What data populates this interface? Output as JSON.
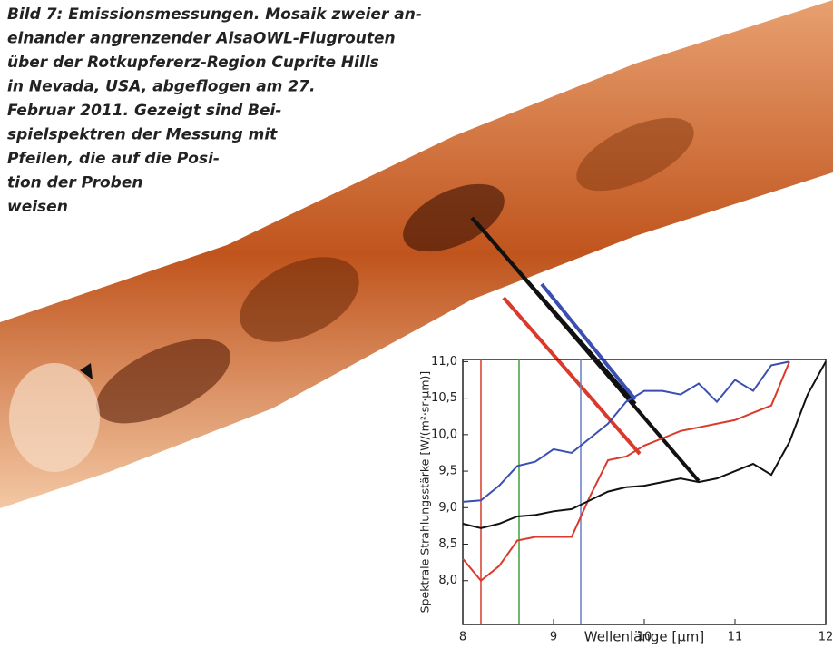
{
  "caption": {
    "lines": [
      "Bild 7: Emissionsmessungen. Mosaik zweier an-",
      "einander angrenzender AisaOWL-Flugrouten",
      "über der Rotkupfererz-Region Cuprite Hills",
      "in Nevada, USA, abgeflogen am 27.",
      "Februar 2011. Gezeigt sind Bei-",
      "spielspektren der Messung mit",
      "Pfeilen, die auf die Posi-",
      "tion der Proben",
      "weisen"
    ]
  },
  "chart_data": {
    "type": "line",
    "x_label": "Wellenlänge [µm]",
    "y_label": "Spektrale Strahlungsstärke [W/(m²·sr·µm)]",
    "x": [
      8,
      8.2,
      8.4,
      8.6,
      8.8,
      9,
      9.2,
      9.4,
      9.6,
      9.8,
      10,
      10.2,
      10.4,
      10.6,
      10.8,
      11,
      11.2,
      11.4,
      11.6,
      11.8,
      12
    ],
    "series": [
      {
        "color": "#3a4fb0",
        "values": [
          9.08,
          9.1,
          9.3,
          9.57,
          9.63,
          9.8,
          9.75,
          9.95,
          10.15,
          10.45,
          10.6,
          10.6,
          10.55,
          10.7,
          10.45,
          10.75,
          10.6,
          10.95,
          11.0,
          null,
          null
        ]
      },
      {
        "color": "#d93a2b",
        "values": [
          8.3,
          8.0,
          8.2,
          8.55,
          8.6,
          8.6,
          8.6,
          9.15,
          9.65,
          9.7,
          9.85,
          9.95,
          10.05,
          10.1,
          10.15,
          10.2,
          10.3,
          10.4,
          11.0,
          null,
          null
        ]
      },
      {
        "color": "#111111",
        "values": [
          8.78,
          8.72,
          8.78,
          8.88,
          8.9,
          8.95,
          8.98,
          9.1,
          9.22,
          9.28,
          9.3,
          9.35,
          9.4,
          9.35,
          9.4,
          9.5,
          9.6,
          9.45,
          9.9,
          10.55,
          11.0
        ]
      }
    ],
    "markers": [
      {
        "x": 8.2,
        "color": "#d93a2b"
      },
      {
        "x": 8.62,
        "color": "#3fa03f"
      },
      {
        "x": 9.3,
        "color": "#6a7fc0"
      }
    ],
    "xlim": [
      8,
      12
    ],
    "xticks": [
      8,
      9,
      10,
      11,
      12
    ],
    "ylim": [
      7.4,
      11.03
    ],
    "yticks": [
      {
        "value": 8,
        "label": "8,0"
      },
      {
        "value": 8.5,
        "label": "8,5"
      },
      {
        "value": 9,
        "label": "9,0"
      },
      {
        "value": 9.5,
        "label": "9,5"
      },
      {
        "value": 10,
        "label": "10,0"
      },
      {
        "value": 10.5,
        "label": "10,5"
      },
      {
        "value": 11,
        "label": "11,0"
      }
    ]
  }
}
